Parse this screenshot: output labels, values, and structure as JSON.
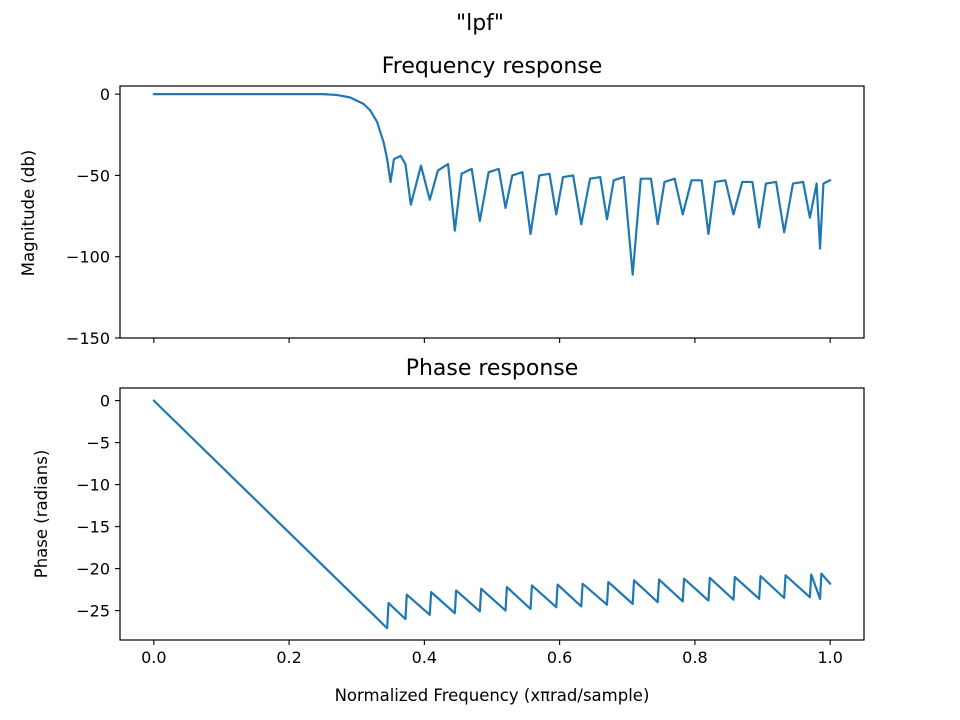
{
  "figure": {
    "suptitle": "\"lpf\""
  },
  "chart_data": [
    {
      "type": "line",
      "title": "Frequency response",
      "xlabel": "",
      "ylabel": "Magnitude (db)",
      "xlim": [
        -0.05,
        1.05
      ],
      "ylim": [
        -150,
        5
      ],
      "xticks": [
        0.0,
        0.2,
        0.4,
        0.6,
        0.8,
        1.0
      ],
      "xtick_labels_visible": false,
      "yticks": [
        0,
        -50,
        -100,
        -150
      ],
      "ytick_labels": [
        "0",
        "−50",
        "−100",
        "−150"
      ],
      "grid": false,
      "color": "#1f77b4",
      "series": [
        {
          "x": [
            0.0,
            0.1,
            0.2,
            0.25,
            0.27,
            0.29,
            0.31,
            0.32,
            0.33,
            0.34,
            0.345,
            0.35,
            0.355,
            0.365,
            0.372,
            0.38,
            0.395,
            0.408,
            0.42,
            0.435,
            0.445,
            0.455,
            0.47,
            0.482,
            0.495,
            0.51,
            0.52,
            0.53,
            0.545,
            0.557,
            0.57,
            0.585,
            0.595,
            0.605,
            0.62,
            0.632,
            0.645,
            0.66,
            0.67,
            0.68,
            0.695,
            0.708,
            0.72,
            0.735,
            0.745,
            0.755,
            0.77,
            0.782,
            0.795,
            0.81,
            0.82,
            0.83,
            0.845,
            0.857,
            0.87,
            0.885,
            0.895,
            0.905,
            0.92,
            0.932,
            0.945,
            0.96,
            0.97,
            0.98,
            0.985,
            0.99,
            1.0
          ],
          "y": [
            0,
            0,
            0,
            0,
            -0.5,
            -2,
            -6,
            -10,
            -17,
            -30,
            -40,
            -54,
            -40,
            -38,
            -43,
            -68,
            -44,
            -65,
            -47,
            -43,
            -84,
            -49,
            -46,
            -78,
            -48,
            -46,
            -70,
            -50,
            -48,
            -86,
            -50,
            -49,
            -74,
            -51,
            -50,
            -80,
            -52,
            -51,
            -77,
            -53,
            -51,
            -111,
            -52,
            -52,
            -80,
            -54,
            -52,
            -74,
            -53,
            -53,
            -86,
            -54,
            -53,
            -74,
            -54,
            -54,
            -82,
            -55,
            -54,
            -85,
            -55,
            -54,
            -76,
            -55,
            -95,
            -55,
            -53
          ]
        }
      ]
    },
    {
      "type": "line",
      "title": "Phase response",
      "xlabel": "Normalized Frequency (xπrad/sample)",
      "ylabel": "Phase (radians)",
      "xlim": [
        -0.05,
        1.05
      ],
      "ylim": [
        -28.5,
        1.5
      ],
      "xticks": [
        0.0,
        0.2,
        0.4,
        0.6,
        0.8,
        1.0
      ],
      "xtick_labels": [
        "0.0",
        "0.2",
        "0.4",
        "0.6",
        "0.8",
        "1.0"
      ],
      "yticks": [
        0,
        -5,
        -10,
        -15,
        -20,
        -25
      ],
      "ytick_labels": [
        "0",
        "−5",
        "−10",
        "−15",
        "−20",
        "−25"
      ],
      "grid": false,
      "color": "#1f77b4",
      "series": [
        {
          "x": [
            0.0,
            0.345,
            0.347,
            0.372,
            0.374,
            0.408,
            0.41,
            0.445,
            0.447,
            0.482,
            0.484,
            0.52,
            0.522,
            0.557,
            0.559,
            0.595,
            0.597,
            0.632,
            0.634,
            0.67,
            0.672,
            0.708,
            0.71,
            0.745,
            0.747,
            0.782,
            0.784,
            0.82,
            0.822,
            0.857,
            0.859,
            0.895,
            0.897,
            0.932,
            0.934,
            0.97,
            0.972,
            0.985,
            0.987,
            1.0
          ],
          "y": [
            0,
            -27.1,
            -24.1,
            -26.0,
            -23.1,
            -25.5,
            -22.8,
            -25.3,
            -22.6,
            -25.1,
            -22.4,
            -25.0,
            -22.2,
            -24.8,
            -22.0,
            -24.6,
            -21.9,
            -24.5,
            -21.8,
            -24.3,
            -21.6,
            -24.2,
            -21.4,
            -24.0,
            -21.3,
            -23.9,
            -21.2,
            -23.8,
            -21.1,
            -23.7,
            -21.0,
            -23.6,
            -20.9,
            -23.5,
            -20.8,
            -23.4,
            -20.7,
            -23.6,
            -20.6,
            -21.8
          ]
        }
      ]
    }
  ]
}
